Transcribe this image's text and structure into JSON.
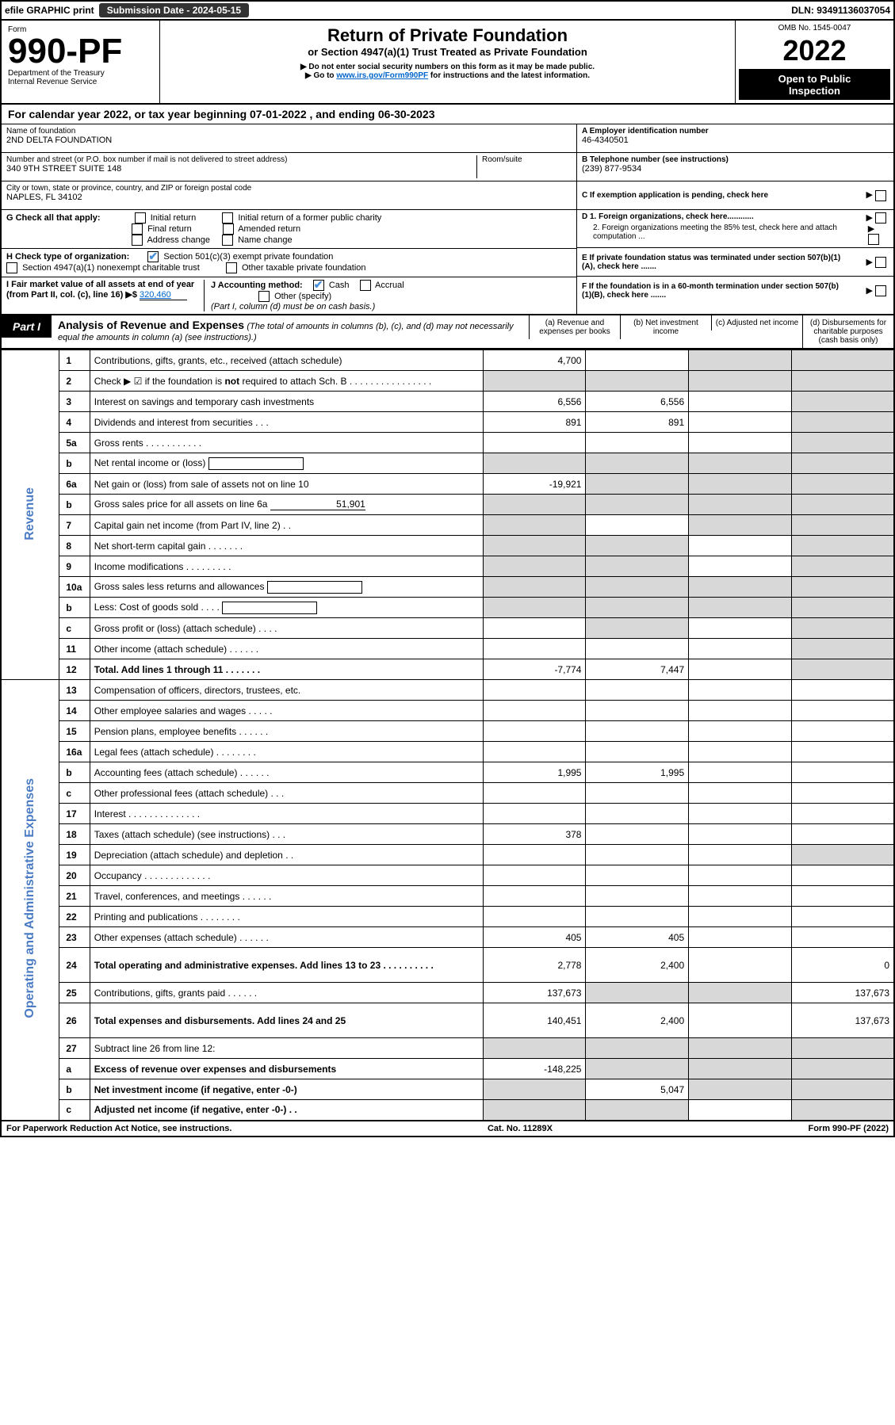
{
  "top_bar": {
    "efile": "efile GRAPHIC print",
    "sub_label": "Submission Date - 2024-05-15",
    "dln": "DLN: 93491136037054"
  },
  "header": {
    "form_word": "Form",
    "form_no": "990-PF",
    "dept1": "Department of the Treasury",
    "dept2": "Internal Revenue Service",
    "title": "Return of Private Foundation",
    "subtitle": "or Section 4947(a)(1) Trust Treated as Private Foundation",
    "note1": "▶ Do not enter social security numbers on this form as it may be made public.",
    "note2_pre": "▶ Go to ",
    "note2_link": "www.irs.gov/Form990PF",
    "note2_post": " for instructions and the latest information.",
    "omb": "OMB No. 1545-0047",
    "year": "2022",
    "open1": "Open to Public",
    "open2": "Inspection"
  },
  "cal_year": {
    "pre": "For calendar year 2022, or tax year beginning ",
    "begin": "07-01-2022",
    "mid": " , and ending ",
    "end": "06-30-2023"
  },
  "entity": {
    "name_label": "Name of foundation",
    "name": "2ND DELTA FOUNDATION",
    "addr_label": "Number and street (or P.O. box number if mail is not delivered to street address)",
    "addr": "340 9TH STREET SUITE 148",
    "room_label": "Room/suite",
    "city_label": "City or town, state or province, country, and ZIP or foreign postal code",
    "city": "NAPLES, FL  34102"
  },
  "right_box": {
    "a_label": "A Employer identification number",
    "a_val": "46-4340501",
    "b_label": "B Telephone number (see instructions)",
    "b_val": "(239) 877-9534",
    "c_label": "C If exemption application is pending, check here",
    "d1": "D 1. Foreign organizations, check here............",
    "d2": "2. Foreign organizations meeting the 85% test, check here and attach computation ...",
    "e": "E  If private foundation status was terminated under section 507(b)(1)(A), check here .......",
    "f": "F  If the foundation is in a 60-month termination under section 507(b)(1)(B), check here ......."
  },
  "g": {
    "label": "G Check all that apply:",
    "o1": "Initial return",
    "o2": "Initial return of a former public charity",
    "o3": "Final return",
    "o4": "Amended return",
    "o5": "Address change",
    "o6": "Name change"
  },
  "h": {
    "label": "H Check type of organization:",
    "o1": "Section 501(c)(3) exempt private foundation",
    "o2": "Section 4947(a)(1) nonexempt charitable trust",
    "o3": "Other taxable private foundation"
  },
  "ij": {
    "i_label": "I Fair market value of all assets at end of year (from Part II, col. (c), line 16) ▶$ ",
    "i_val": "320,460",
    "j_label": "J Accounting method:",
    "j1": "Cash",
    "j2": "Accrual",
    "j3": "Other (specify)",
    "j_note": "(Part I, column (d) must be on cash basis.)"
  },
  "part1": {
    "label": "Part I",
    "title": "Analysis of Revenue and Expenses",
    "title_note": " (The total of amounts in columns (b), (c), and (d) may not necessarily equal the amounts in column (a) (see instructions).)",
    "col_a": "(a)   Revenue and expenses per books",
    "col_b": "(b)   Net investment income",
    "col_c": "(c)   Adjusted net income",
    "col_d": "(d)   Disbursements for charitable purposes (cash basis only)"
  },
  "side_labels": {
    "rev": "Revenue",
    "exp": "Operating and Administrative Expenses"
  },
  "rows": [
    {
      "n": "1",
      "d": "Contributions, gifts, grants, etc., received (attach schedule)",
      "a": "4,700",
      "b": "",
      "c": "sh",
      "dcol": "sh"
    },
    {
      "n": "2",
      "d": "Check ▶ ☑ if the foundation is not required to attach Sch. B  .  .  .  .  .  .  .  .  .  .  .  .  .  .  .  .",
      "a": "sh",
      "b": "sh",
      "c": "sh",
      "dcol": "sh",
      "bold_not": true
    },
    {
      "n": "3",
      "d": "Interest on savings and temporary cash investments",
      "a": "6,556",
      "b": "6,556",
      "c": "",
      "dcol": "sh"
    },
    {
      "n": "4",
      "d": "Dividends and interest from securities   .   .   .",
      "a": "891",
      "b": "891",
      "c": "",
      "dcol": "sh"
    },
    {
      "n": "5a",
      "d": "Gross rents   .   .   .   .   .   .   .   .   .   .   .",
      "a": "",
      "b": "",
      "c": "",
      "dcol": "sh"
    },
    {
      "n": "b",
      "d": "Net rental income or (loss)  ",
      "a": "sh",
      "b": "sh",
      "c": "sh",
      "dcol": "sh",
      "inline_blank": true
    },
    {
      "n": "6a",
      "d": "Net gain or (loss) from sale of assets not on line 10",
      "a": "-19,921",
      "b": "sh",
      "c": "sh",
      "dcol": "sh"
    },
    {
      "n": "b",
      "d": "Gross sales price for all assets on line 6a",
      "a": "sh",
      "b": "sh",
      "c": "sh",
      "dcol": "sh",
      "inline_val": "51,901"
    },
    {
      "n": "7",
      "d": "Capital gain net income (from Part IV, line 2)   .   .",
      "a": "sh",
      "b": "",
      "c": "sh",
      "dcol": "sh"
    },
    {
      "n": "8",
      "d": "Net short-term capital gain   .   .   .   .   .   .   .",
      "a": "sh",
      "b": "sh",
      "c": "",
      "dcol": "sh"
    },
    {
      "n": "9",
      "d": "Income modifications  .   .   .   .   .   .   .   .   .",
      "a": "sh",
      "b": "sh",
      "c": "",
      "dcol": "sh"
    },
    {
      "n": "10a",
      "d": "Gross sales less returns and allowances",
      "a": "sh",
      "b": "sh",
      "c": "sh",
      "dcol": "sh",
      "inline_blank": true
    },
    {
      "n": "b",
      "d": "Less: Cost of goods sold     .   .   .   .",
      "a": "sh",
      "b": "sh",
      "c": "sh",
      "dcol": "sh",
      "inline_blank": true
    },
    {
      "n": "c",
      "d": "Gross profit or (loss) (attach schedule)    .   .   .   .",
      "a": "",
      "b": "sh",
      "c": "",
      "dcol": "sh"
    },
    {
      "n": "11",
      "d": "Other income (attach schedule)    .   .   .   .   .   .",
      "a": "",
      "b": "",
      "c": "",
      "dcol": "sh"
    },
    {
      "n": "12",
      "d": "Total. Add lines 1 through 11   .   .   .   .   .   .   .",
      "a": "-7,774",
      "b": "7,447",
      "c": "",
      "dcol": "sh",
      "bold": true
    },
    {
      "n": "13",
      "d": "Compensation of officers, directors, trustees, etc.",
      "a": "",
      "b": "",
      "c": "",
      "dcol": ""
    },
    {
      "n": "14",
      "d": "Other employee salaries and wages    .   .   .   .   .",
      "a": "",
      "b": "",
      "c": "",
      "dcol": ""
    },
    {
      "n": "15",
      "d": "Pension plans, employee benefits  .   .   .   .   .   .",
      "a": "",
      "b": "",
      "c": "",
      "dcol": ""
    },
    {
      "n": "16a",
      "d": "Legal fees (attach schedule)  .   .   .   .   .   .   .   .",
      "a": "",
      "b": "",
      "c": "",
      "dcol": ""
    },
    {
      "n": "b",
      "d": "Accounting fees (attach schedule)  .   .   .   .   .   .",
      "a": "1,995",
      "b": "1,995",
      "c": "",
      "dcol": ""
    },
    {
      "n": "c",
      "d": "Other professional fees (attach schedule)    .   .   .",
      "a": "",
      "b": "",
      "c": "",
      "dcol": ""
    },
    {
      "n": "17",
      "d": "Interest  .   .   .   .   .   .   .   .   .   .   .   .   .   .",
      "a": "",
      "b": "",
      "c": "",
      "dcol": ""
    },
    {
      "n": "18",
      "d": "Taxes (attach schedule) (see instructions)    .   .   .",
      "a": "378",
      "b": "",
      "c": "",
      "dcol": ""
    },
    {
      "n": "19",
      "d": "Depreciation (attach schedule) and depletion    .   .",
      "a": "",
      "b": "",
      "c": "",
      "dcol": "sh"
    },
    {
      "n": "20",
      "d": "Occupancy  .   .   .   .   .   .   .   .   .   .   .   .   .",
      "a": "",
      "b": "",
      "c": "",
      "dcol": ""
    },
    {
      "n": "21",
      "d": "Travel, conferences, and meetings  .   .   .   .   .   .",
      "a": "",
      "b": "",
      "c": "",
      "dcol": ""
    },
    {
      "n": "22",
      "d": "Printing and publications  .   .   .   .   .   .   .   .",
      "a": "",
      "b": "",
      "c": "",
      "dcol": ""
    },
    {
      "n": "23",
      "d": "Other expenses (attach schedule)  .   .   .   .   .   .",
      "a": "405",
      "b": "405",
      "c": "",
      "dcol": ""
    },
    {
      "n": "24",
      "d": "Total operating and administrative expenses. Add lines 13 to 23   .   .   .   .   .   .   .   .   .   .",
      "a": "2,778",
      "b": "2,400",
      "c": "",
      "dcol": "0",
      "bold": true,
      "tall": true
    },
    {
      "n": "25",
      "d": "Contributions, gifts, grants paid    .   .   .   .   .   .",
      "a": "137,673",
      "b": "sh",
      "c": "sh",
      "dcol": "137,673"
    },
    {
      "n": "26",
      "d": "Total expenses and disbursements. Add lines 24 and 25",
      "a": "140,451",
      "b": "2,400",
      "c": "",
      "dcol": "137,673",
      "bold": true,
      "tall": true
    },
    {
      "n": "27",
      "d": "Subtract line 26 from line 12:",
      "a": "sh",
      "b": "sh",
      "c": "sh",
      "dcol": "sh"
    },
    {
      "n": "a",
      "d": "Excess of revenue over expenses and disbursements",
      "a": "-148,225",
      "b": "sh",
      "c": "sh",
      "dcol": "sh",
      "bold": true
    },
    {
      "n": "b",
      "d": "Net investment income (if negative, enter -0-)",
      "a": "sh",
      "b": "5,047",
      "c": "sh",
      "dcol": "sh",
      "bold": true
    },
    {
      "n": "c",
      "d": "Adjusted net income (if negative, enter -0-)   .   .",
      "a": "sh",
      "b": "sh",
      "c": "",
      "dcol": "sh",
      "bold": true
    }
  ],
  "footer": {
    "left": "For Paperwork Reduction Act Notice, see instructions.",
    "mid": "Cat. No. 11289X",
    "right": "Form 990-PF (2022)"
  },
  "colors": {
    "link": "#0066cc",
    "check": "#4a90d9",
    "side": "#4a7bc4",
    "shade": "#d8d8d8"
  }
}
